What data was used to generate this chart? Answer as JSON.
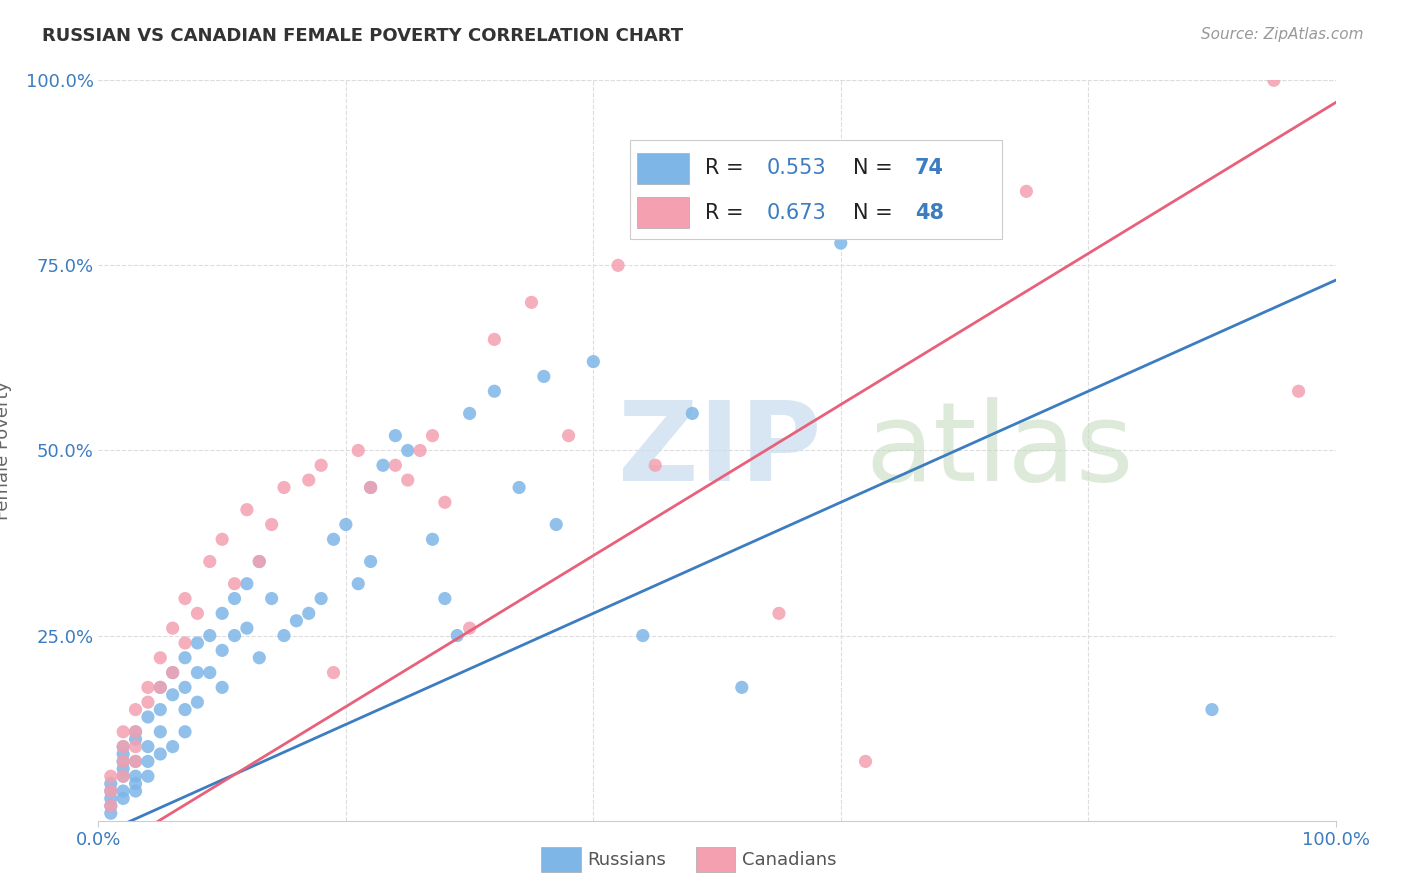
{
  "title": "RUSSIAN VS CANADIAN FEMALE POVERTY CORRELATION CHART",
  "source": "Source: ZipAtlas.com",
  "ylabel": "Female Poverty",
  "xlim": [
    0,
    1.0
  ],
  "ylim": [
    0,
    1.0
  ],
  "ytick_labels": [
    "25.0%",
    "50.0%",
    "75.0%",
    "100.0%"
  ],
  "ytick_positions": [
    0.25,
    0.5,
    0.75,
    1.0
  ],
  "russian_color": "#7EB6E8",
  "canadian_color": "#F4A0B0",
  "russian_line_color": "#3C7CC0",
  "canadian_line_color": "#E8607A",
  "tick_color": "#3C7CC0",
  "russian_R": 0.553,
  "russian_N": 74,
  "canadian_R": 0.673,
  "canadian_N": 48,
  "russian_slope": 0.75,
  "russian_intercept": -0.02,
  "canadian_slope": 1.02,
  "canadian_intercept": -0.05,
  "russians_x": [
    0.01,
    0.01,
    0.01,
    0.01,
    0.01,
    0.02,
    0.02,
    0.02,
    0.02,
    0.02,
    0.02,
    0.02,
    0.03,
    0.03,
    0.03,
    0.03,
    0.03,
    0.03,
    0.04,
    0.04,
    0.04,
    0.04,
    0.05,
    0.05,
    0.05,
    0.05,
    0.06,
    0.06,
    0.06,
    0.07,
    0.07,
    0.07,
    0.07,
    0.08,
    0.08,
    0.08,
    0.09,
    0.09,
    0.1,
    0.1,
    0.1,
    0.11,
    0.11,
    0.12,
    0.12,
    0.13,
    0.13,
    0.14,
    0.15,
    0.16,
    0.17,
    0.18,
    0.19,
    0.2,
    0.21,
    0.22,
    0.22,
    0.23,
    0.24,
    0.25,
    0.27,
    0.28,
    0.29,
    0.3,
    0.32,
    0.34,
    0.36,
    0.37,
    0.4,
    0.44,
    0.48,
    0.52,
    0.6,
    0.9
  ],
  "russians_y": [
    0.05,
    0.04,
    0.03,
    0.02,
    0.01,
    0.1,
    0.09,
    0.08,
    0.07,
    0.06,
    0.04,
    0.03,
    0.12,
    0.11,
    0.08,
    0.06,
    0.05,
    0.04,
    0.14,
    0.1,
    0.08,
    0.06,
    0.18,
    0.15,
    0.12,
    0.09,
    0.2,
    0.17,
    0.1,
    0.22,
    0.18,
    0.15,
    0.12,
    0.24,
    0.2,
    0.16,
    0.25,
    0.2,
    0.28,
    0.23,
    0.18,
    0.3,
    0.25,
    0.32,
    0.26,
    0.35,
    0.22,
    0.3,
    0.25,
    0.27,
    0.28,
    0.3,
    0.38,
    0.4,
    0.32,
    0.35,
    0.45,
    0.48,
    0.52,
    0.5,
    0.38,
    0.3,
    0.25,
    0.55,
    0.58,
    0.45,
    0.6,
    0.4,
    0.62,
    0.25,
    0.55,
    0.18,
    0.78,
    0.15
  ],
  "canadians_x": [
    0.01,
    0.01,
    0.01,
    0.02,
    0.02,
    0.02,
    0.02,
    0.03,
    0.03,
    0.03,
    0.03,
    0.04,
    0.04,
    0.05,
    0.05,
    0.06,
    0.06,
    0.07,
    0.07,
    0.08,
    0.09,
    0.1,
    0.11,
    0.12,
    0.13,
    0.14,
    0.15,
    0.17,
    0.18,
    0.19,
    0.21,
    0.22,
    0.24,
    0.25,
    0.26,
    0.27,
    0.28,
    0.3,
    0.32,
    0.35,
    0.38,
    0.42,
    0.45,
    0.55,
    0.62,
    0.75,
    0.95,
    0.97
  ],
  "canadians_y": [
    0.06,
    0.04,
    0.02,
    0.12,
    0.1,
    0.08,
    0.06,
    0.15,
    0.12,
    0.1,
    0.08,
    0.18,
    0.16,
    0.22,
    0.18,
    0.26,
    0.2,
    0.3,
    0.24,
    0.28,
    0.35,
    0.38,
    0.32,
    0.42,
    0.35,
    0.4,
    0.45,
    0.46,
    0.48,
    0.2,
    0.5,
    0.45,
    0.48,
    0.46,
    0.5,
    0.52,
    0.43,
    0.26,
    0.65,
    0.7,
    0.52,
    0.75,
    0.48,
    0.28,
    0.08,
    0.85,
    1.0,
    0.58
  ],
  "background_color": "#FFFFFF",
  "grid_color": "#DDDDDD"
}
